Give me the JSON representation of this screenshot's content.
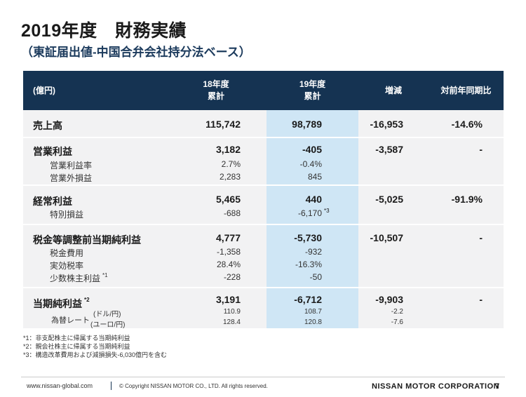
{
  "title": "2019年度　財務実績",
  "subtitle": "（東証届出値-中国合弁会社持分法ベース）",
  "header": {
    "unit": "(億円)",
    "fy18": [
      "18年度",
      "累計"
    ],
    "fy19": [
      "19年度",
      "累計"
    ],
    "change": "増減",
    "yoy": "対前年同期比"
  },
  "rows": {
    "sales": {
      "label": "売上高",
      "fy18": "115,742",
      "fy19": "98,789",
      "change": "-16,953",
      "yoy": "-14.6%"
    },
    "op": {
      "label": "営業利益",
      "fy18": "3,182",
      "fy19": "-405",
      "change": "-3,587",
      "yoy": "-"
    },
    "op_margin": {
      "label": "営業利益率",
      "fy18": "2.7%",
      "fy19": "-0.4%"
    },
    "non_op": {
      "label": "営業外損益",
      "fy18": "2,283",
      "fy19": "845"
    },
    "ordinary": {
      "label": "経常利益",
      "fy18": "5,465",
      "fy19": "440",
      "change": "-5,025",
      "yoy": "-91.9%"
    },
    "special": {
      "label": "特別損益",
      "fy18": "-688",
      "fy19": "-6,170",
      "note": "*3"
    },
    "pretax": {
      "label": "税金等調整前当期純利益",
      "fy18": "4,777",
      "fy19": "-5,730",
      "change": "-10,507",
      "yoy": "-"
    },
    "tax": {
      "label": "税金費用",
      "fy18": "-1,358",
      "fy19": "-932"
    },
    "tax_rate": {
      "label": "実効税率",
      "fy18": "28.4%",
      "fy19": "-16.3%"
    },
    "minority": {
      "label": "少数株主利益",
      "note": "*1",
      "fy18": "-228",
      "fy19": "-50"
    },
    "net": {
      "label": "当期純利益",
      "note": "*2",
      "fy18": "3,191",
      "fy19": "-6,712",
      "change": "-9,903",
      "yoy": "-"
    },
    "fx_label": "為替レート",
    "fx_usd": {
      "label": "(ドル/円)",
      "fy18": "110.9",
      "fy19": "108.7",
      "change": "-2.2"
    },
    "fx_eur": {
      "label": "(ユーロ/円)",
      "fy18": "128.4",
      "fy19": "120.8",
      "change": "-7.6"
    }
  },
  "notes": [
    "*1：非支配株主に帰属する当期純利益",
    "*2：親会社株主に帰属する当期純利益",
    "*3：構造改革費用および減損損失-6,030億円を含む"
  ],
  "footer": {
    "url": "www.nissan-global.com",
    "copyright": "© Copyright NISSAN MOTOR CO., LTD. All rights reserved.",
    "brand": "NISSAN MOTOR CORPORATION",
    "page": "7"
  }
}
